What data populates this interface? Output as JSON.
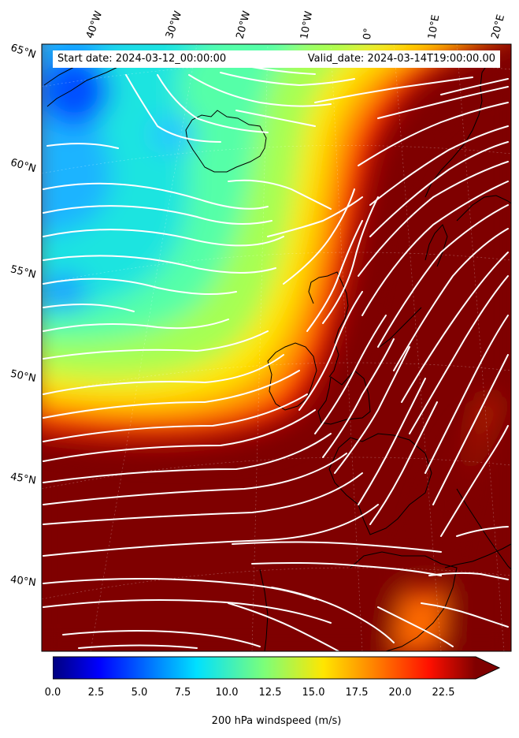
{
  "header": {
    "start_label": "Start date: 2024-03-12_00:00:00",
    "valid_label": "Valid_date: 2024-03-14T19:00:00.00"
  },
  "lon_labels": [
    "40°W",
    "30°W",
    "20°W",
    "10°W",
    "0°",
    "10°E",
    "20°E"
  ],
  "lat_labels": [
    "65°N",
    "60°N",
    "55°N",
    "50°N",
    "45°N",
    "40°N"
  ],
  "colorbar": {
    "label": "200 hPa windspeed (m/s)",
    "min": 0,
    "max": 25,
    "extend": "max",
    "ticks": [
      "0.0",
      "2.5",
      "5.0",
      "7.5",
      "10.0",
      "12.5",
      "15.0",
      "17.5",
      "20.0",
      "22.5"
    ],
    "colormap": "jet"
  },
  "colors": {
    "jet_core": "#7f0000",
    "streamline": "#ffffff",
    "coastline": "#000000"
  }
}
